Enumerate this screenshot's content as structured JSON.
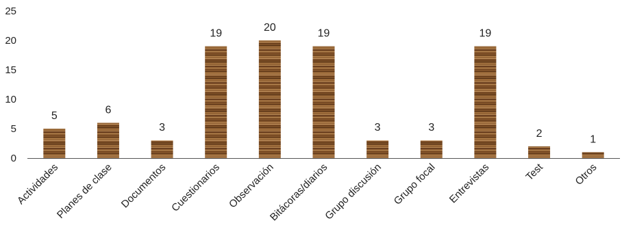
{
  "chart_data": {
    "type": "bar",
    "categories": [
      "Actividades",
      "Planes de clase",
      "Documentos",
      "Cuestionarios",
      "Observación",
      "Bitácoras/diarios",
      "Grupo discusión",
      "Grupo focal",
      "Entrevistas",
      "Test",
      "Otros"
    ],
    "values": [
      5,
      6,
      3,
      19,
      20,
      19,
      3,
      3,
      19,
      2,
      1
    ],
    "ylim": [
      0,
      25
    ],
    "yticks": [
      0,
      5,
      10,
      15,
      20,
      25
    ],
    "grid": false,
    "legend": "none",
    "bar_texture": "wood",
    "colors": {
      "bar_base": "#8a5a2e",
      "bar_dark": "#5a3416",
      "bar_light": "#b98a55",
      "axis": "#555555"
    }
  }
}
